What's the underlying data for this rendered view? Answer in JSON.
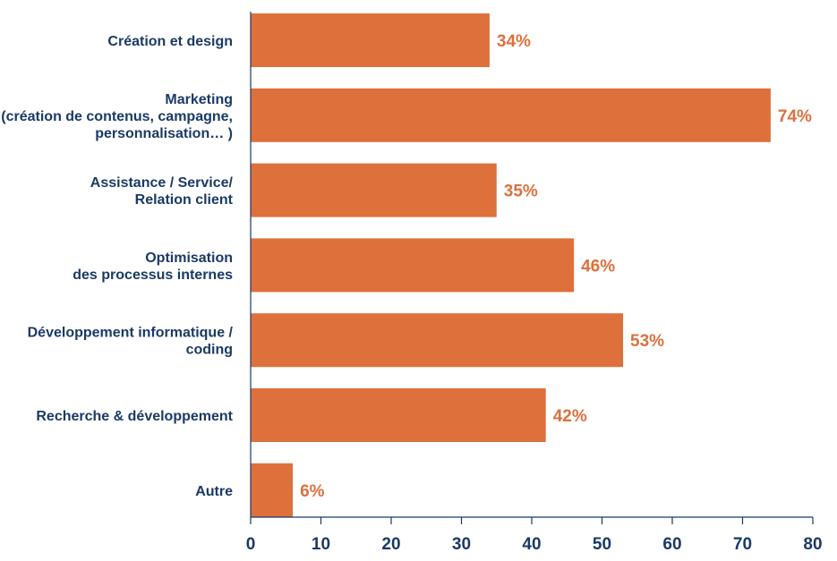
{
  "chart_data": {
    "type": "bar",
    "orientation": "horizontal",
    "categories": [
      [
        "Création et design"
      ],
      [
        "Marketing",
        "(création de contenus, campagne,",
        "personnalisation… )"
      ],
      [
        "Assistance / Service/",
        "Relation client"
      ],
      [
        "Optimisation",
        "des processus internes"
      ],
      [
        "Développement informatique /",
        "coding"
      ],
      [
        "Recherche & développement"
      ],
      [
        "Autre"
      ]
    ],
    "values": [
      34,
      74,
      35,
      46,
      53,
      42,
      6
    ],
    "value_labels": [
      "34%",
      "74%",
      "35%",
      "46%",
      "53%",
      "42%",
      "6%"
    ],
    "x_ticks": [
      "0",
      "10",
      "20",
      "30",
      "40",
      "50",
      "60",
      "70",
      "80"
    ],
    "xlim": [
      0,
      80
    ],
    "grid": false,
    "title": "",
    "xlabel": "",
    "ylabel": "",
    "colors": {
      "bar": "#DE703C",
      "value_label": "#DE703C",
      "category_label": "#1B3A66",
      "tick_label": "#1B3A66",
      "axis": "#1B3A66"
    }
  }
}
